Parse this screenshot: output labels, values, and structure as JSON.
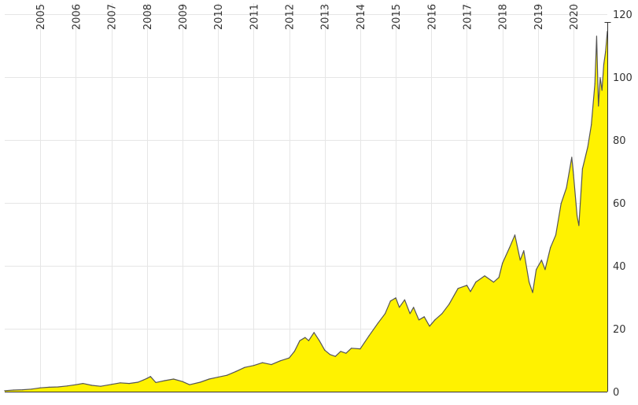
{
  "chart_data": {
    "type": "area",
    "title": "",
    "xlabel": "",
    "ylabel": "",
    "x_ticks": [
      "2005",
      "2006",
      "2007",
      "2008",
      "2009",
      "2010",
      "2011",
      "2012",
      "2013",
      "2014",
      "2015",
      "2016",
      "2017",
      "2018",
      "2019",
      "2020"
    ],
    "y_ticks": [
      0,
      20,
      40,
      60,
      80,
      100,
      120
    ],
    "xlim": [
      2004.0,
      2020.95
    ],
    "ylim": [
      0,
      120
    ],
    "grid": true,
    "legend": "none",
    "colors": {
      "area": "#fff200",
      "line": "#555555",
      "grid": "#e6e6e6",
      "text": "#333333"
    },
    "series": [
      {
        "x": [
          2004.0,
          2004.25,
          2004.5,
          2004.75,
          2005.0,
          2005.25,
          2005.5,
          2005.75,
          2006.0,
          2006.2,
          2006.45,
          2006.7,
          2007.0,
          2007.25,
          2007.5,
          2007.75,
          2007.9,
          2008.0,
          2008.1,
          2008.25,
          2008.5,
          2008.75,
          2009.0,
          2009.2,
          2009.5,
          2009.75,
          2010.0,
          2010.25,
          2010.5,
          2010.75,
          2011.0,
          2011.25,
          2011.5,
          2011.75,
          2012.0,
          2012.15,
          2012.3,
          2012.45,
          2012.55,
          2012.7,
          2012.85,
          2013.0,
          2013.15,
          2013.3,
          2013.45,
          2013.6,
          2013.75,
          2014.0,
          2014.25,
          2014.5,
          2014.7,
          2014.85,
          2015.0,
          2015.1,
          2015.25,
          2015.4,
          2015.5,
          2015.65,
          2015.8,
          2015.95,
          2016.1,
          2016.3,
          2016.5,
          2016.75,
          2017.0,
          2017.1,
          2017.25,
          2017.5,
          2017.75,
          2017.9,
          2018.0,
          2018.2,
          2018.35,
          2018.5,
          2018.6,
          2018.75,
          2018.85,
          2018.95,
          2019.1,
          2019.2,
          2019.35,
          2019.5,
          2019.65,
          2019.8,
          2019.95,
          2020.0,
          2020.1,
          2020.15,
          2020.25,
          2020.4,
          2020.5,
          2020.6,
          2020.65,
          2020.7,
          2020.75,
          2020.8,
          2020.85,
          2020.9,
          2020.95
        ],
        "y": [
          0.3,
          0.5,
          0.6,
          0.8,
          1.2,
          1.4,
          1.5,
          1.8,
          2.2,
          2.6,
          2.0,
          1.7,
          2.3,
          2.8,
          2.6,
          3.0,
          3.7,
          4.2,
          4.8,
          2.9,
          3.5,
          4.0,
          3.2,
          2.2,
          3.0,
          4.0,
          4.6,
          5.2,
          6.4,
          7.7,
          8.3,
          9.2,
          8.6,
          9.8,
          10.7,
          12.8,
          16.2,
          17.2,
          16.2,
          18.8,
          16.2,
          13.2,
          11.8,
          11.2,
          12.8,
          12.2,
          13.8,
          13.6,
          17.8,
          21.8,
          24.8,
          28.8,
          29.8,
          26.8,
          29.2,
          24.8,
          26.8,
          22.8,
          23.8,
          20.8,
          22.8,
          24.8,
          27.8,
          32.8,
          33.8,
          31.8,
          34.8,
          36.8,
          34.8,
          36.3,
          40.8,
          45.8,
          49.8,
          41.8,
          44.8,
          34.8,
          31.5,
          38.8,
          41.8,
          38.8,
          45.8,
          49.8,
          59.8,
          64.8,
          74.5,
          68.8,
          55.8,
          52.8,
          70.8,
          77.8,
          84.8,
          97.8,
          113.0,
          90.8,
          99.8,
          95.8,
          104.0,
          108.0,
          114.5
        ]
      }
    ]
  }
}
